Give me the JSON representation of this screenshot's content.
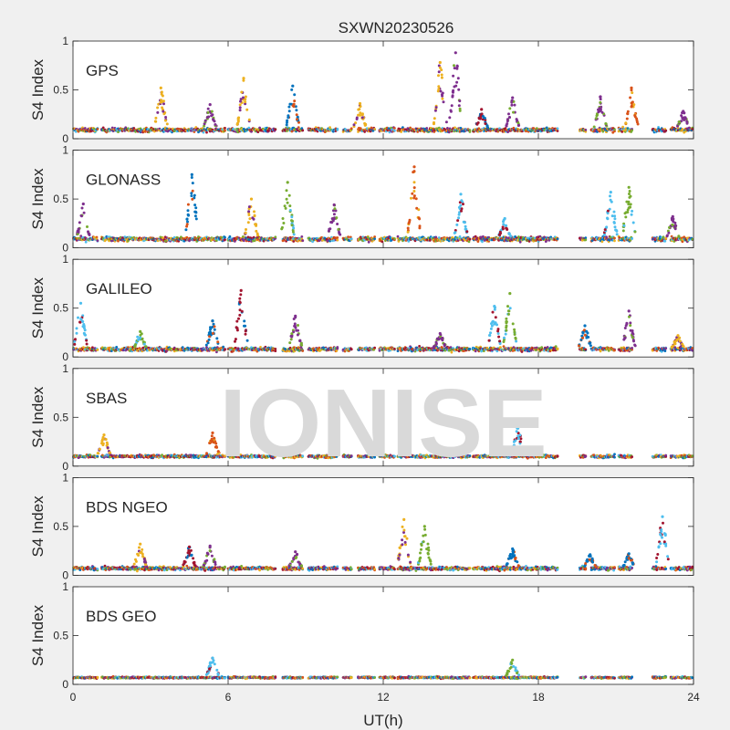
{
  "figure": {
    "title": "SXWN20230526",
    "watermark": "IONISE"
  },
  "colors": {
    "series": [
      "#0072bd",
      "#d95319",
      "#edb120",
      "#7e2f8e",
      "#77ac30",
      "#4dbeee",
      "#a2142f"
    ],
    "axis": "#262626",
    "background": "#f0f0f0",
    "panel": "#ffffff"
  },
  "chart_data": {
    "type": "scatter",
    "title": "SXWN20230526",
    "xlabel": "UT(h)",
    "xlim": [
      0,
      24
    ],
    "xticks": [
      0,
      6,
      12,
      18,
      24
    ],
    "ylim": [
      0,
      1
    ],
    "yticks": [
      0,
      0.5,
      1
    ],
    "grid": false,
    "data_gaps_h": [
      [
        0.95,
        1.1
      ],
      [
        5.9,
        6.0
      ],
      [
        7.85,
        8.1
      ],
      [
        8.9,
        9.1
      ],
      [
        10.25,
        10.45
      ],
      [
        10.8,
        11.0
      ],
      [
        11.7,
        11.85
      ],
      [
        12.45,
        12.55
      ],
      [
        15.35,
        15.45
      ],
      [
        18.75,
        19.6
      ],
      [
        19.85,
        20.05
      ],
      [
        20.95,
        21.1
      ],
      [
        21.65,
        22.4
      ],
      [
        22.95,
        23.1
      ]
    ],
    "panels": [
      {
        "label": "GPS",
        "ylabel": "S4 Index",
        "baseline": 0.09,
        "spread": 0.035,
        "bursts": [
          {
            "t": 3.4,
            "peak": 0.52
          },
          {
            "t": 5.3,
            "peak": 0.35
          },
          {
            "t": 6.6,
            "peak": 0.62
          },
          {
            "t": 8.5,
            "peak": 0.54
          },
          {
            "t": 11.1,
            "peak": 0.36
          },
          {
            "t": 14.2,
            "peak": 0.78
          },
          {
            "t": 14.8,
            "peak": 0.88
          },
          {
            "t": 15.8,
            "peak": 0.3
          },
          {
            "t": 17.0,
            "peak": 0.42
          },
          {
            "t": 20.4,
            "peak": 0.43
          },
          {
            "t": 21.6,
            "peak": 0.52
          },
          {
            "t": 23.6,
            "peak": 0.28
          }
        ]
      },
      {
        "label": "GLONASS",
        "ylabel": "S4 Index",
        "baseline": 0.09,
        "spread": 0.04,
        "bursts": [
          {
            "t": 0.4,
            "peak": 0.45
          },
          {
            "t": 4.6,
            "peak": 0.75
          },
          {
            "t": 6.9,
            "peak": 0.5
          },
          {
            "t": 8.3,
            "peak": 0.67
          },
          {
            "t": 10.1,
            "peak": 0.44
          },
          {
            "t": 13.2,
            "peak": 0.83
          },
          {
            "t": 15.0,
            "peak": 0.55
          },
          {
            "t": 16.7,
            "peak": 0.3
          },
          {
            "t": 20.8,
            "peak": 0.57
          },
          {
            "t": 21.5,
            "peak": 0.62
          },
          {
            "t": 23.2,
            "peak": 0.32
          }
        ]
      },
      {
        "label": "GALILEO",
        "ylabel": "S4 Index",
        "baseline": 0.08,
        "spread": 0.035,
        "bursts": [
          {
            "t": 0.3,
            "peak": 0.55
          },
          {
            "t": 2.6,
            "peak": 0.26
          },
          {
            "t": 5.4,
            "peak": 0.37
          },
          {
            "t": 6.5,
            "peak": 0.68
          },
          {
            "t": 8.6,
            "peak": 0.42
          },
          {
            "t": 14.2,
            "peak": 0.24
          },
          {
            "t": 16.3,
            "peak": 0.52
          },
          {
            "t": 16.9,
            "peak": 0.65
          },
          {
            "t": 19.8,
            "peak": 0.32
          },
          {
            "t": 21.5,
            "peak": 0.47
          },
          {
            "t": 23.4,
            "peak": 0.22
          }
        ]
      },
      {
        "label": "SBAS",
        "ylabel": "S4 Index",
        "baseline": 0.1,
        "spread": 0.025,
        "bursts": [
          {
            "t": 1.2,
            "peak": 0.32
          },
          {
            "t": 5.4,
            "peak": 0.34
          },
          {
            "t": 17.2,
            "peak": 0.4
          }
        ]
      },
      {
        "label": "BDS NGEO",
        "ylabel": "S4 Index",
        "baseline": 0.07,
        "spread": 0.03,
        "bursts": [
          {
            "t": 2.6,
            "peak": 0.32
          },
          {
            "t": 4.5,
            "peak": 0.29
          },
          {
            "t": 5.3,
            "peak": 0.3
          },
          {
            "t": 8.6,
            "peak": 0.24
          },
          {
            "t": 12.8,
            "peak": 0.57
          },
          {
            "t": 13.6,
            "peak": 0.5
          },
          {
            "t": 17.0,
            "peak": 0.27
          },
          {
            "t": 20.0,
            "peak": 0.21
          },
          {
            "t": 21.5,
            "peak": 0.22
          },
          {
            "t": 22.8,
            "peak": 0.6
          }
        ]
      },
      {
        "label": "BDS GEO",
        "ylabel": "S4 Index",
        "baseline": 0.07,
        "spread": 0.015,
        "bursts": [
          {
            "t": 5.4,
            "peak": 0.27
          },
          {
            "t": 17.0,
            "peak": 0.25
          }
        ]
      }
    ]
  }
}
